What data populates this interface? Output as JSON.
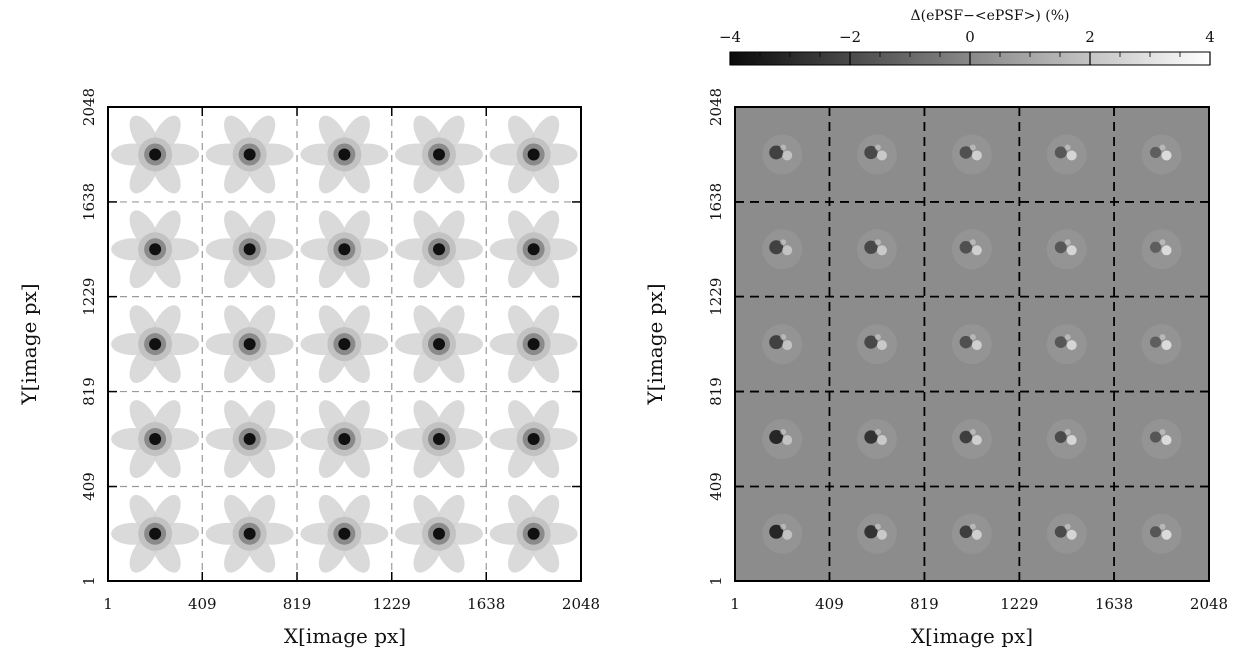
{
  "figure": {
    "left_panel": {
      "xlabel": "X[image px]",
      "ylabel": "Y[image px]"
    },
    "right_panel": {
      "xlabel": "X[image px]",
      "ylabel": "Y[image px]",
      "colorbar": {
        "title": "Δ(ePSF−<ePSF>) (%)",
        "ticks": [
          "−4",
          "−2",
          "0",
          "2",
          "4"
        ],
        "range": [
          -4,
          4
        ]
      }
    }
  },
  "chart_data": [
    {
      "type": "heatmap",
      "title": "",
      "xlabel": "X[image px]",
      "ylabel": "Y[image px]",
      "xlim": [
        1,
        2048
      ],
      "ylim": [
        1,
        2048
      ],
      "xticks": [
        1,
        409,
        819,
        1229,
        1638,
        2048
      ],
      "yticks": [
        1,
        409,
        819,
        1229,
        1638,
        2048
      ],
      "grid_lines": [
        409,
        819,
        1229,
        1638
      ],
      "grid": "5x5 dashed",
      "cells": 25,
      "content": "ePSF at each grid position"
    },
    {
      "type": "heatmap",
      "title": "",
      "xlabel": "X[image px]",
      "ylabel": "Y[image px]",
      "xlim": [
        1,
        2048
      ],
      "ylim": [
        1,
        2048
      ],
      "xticks": [
        1,
        409,
        819,
        1229,
        1638,
        2048
      ],
      "yticks": [
        1,
        409,
        819,
        1229,
        1638,
        2048
      ],
      "grid_lines": [
        409,
        819,
        1229,
        1638
      ],
      "grid": "5x5 dashed",
      "cells": 25,
      "colorbar_range": [
        -4,
        4
      ],
      "content": "ePSF minus mean ePSF residuals (%)"
    }
  ]
}
